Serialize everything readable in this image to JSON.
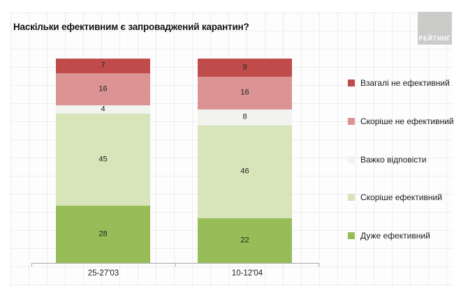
{
  "title": "Наскільки ефективним є запроваджений карантин?",
  "logo": {
    "text": "РЕЙТИНГ",
    "background": "#cbcbca"
  },
  "chart_data": {
    "type": "bar",
    "variant": "stacked-percent-column",
    "title": "Наскільки ефективним є запроваджений карантин?",
    "categories": [
      "25-27'03",
      "10-12'04"
    ],
    "series": [
      {
        "name": "Взагалі не ефективний",
        "color": "#bf4b4b",
        "values": [
          7,
          9
        ]
      },
      {
        "name": "Скоріше не ефективний",
        "color": "#db9393",
        "values": [
          16,
          16
        ]
      },
      {
        "name": "Важко відповісти",
        "color": "#f2f2ef",
        "values": [
          4,
          8
        ]
      },
      {
        "name": "Скоріше ефективний",
        "color": "#d8e4ba",
        "values": [
          45,
          46
        ]
      },
      {
        "name": "Дуже ефективний",
        "color": "#96bd57",
        "values": [
          28,
          22
        ]
      }
    ],
    "stack_order": "top-to-bottom",
    "value_labels": true,
    "legend_position": "right",
    "grid": "faint-paper-texture",
    "axis_line_color": "#a8a8a8"
  }
}
